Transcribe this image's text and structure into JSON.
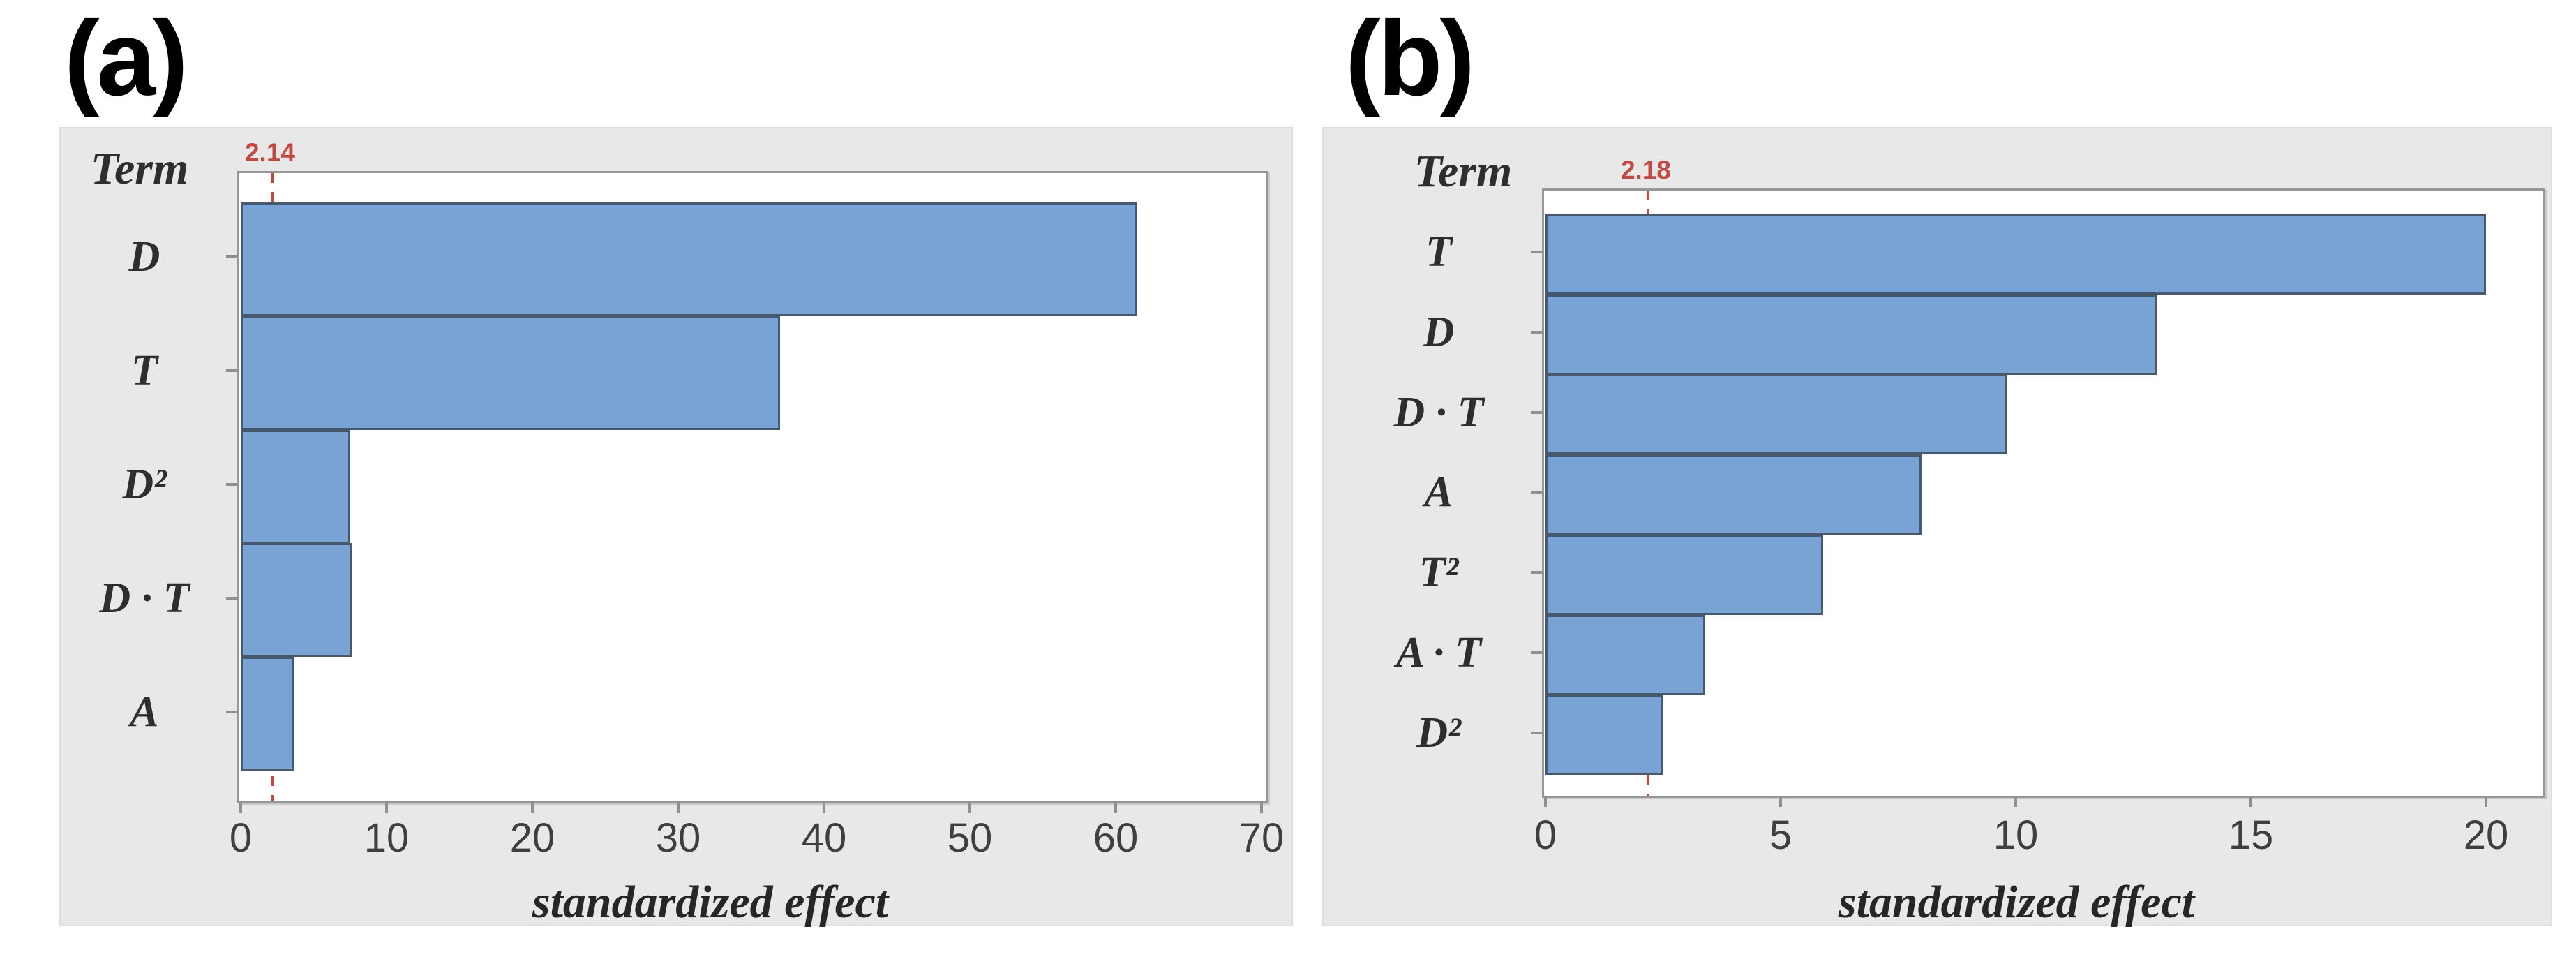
{
  "figure": {
    "panel_a_label": "(a)",
    "panel_b_label": "(b)"
  },
  "chart_data": [
    {
      "id": "a",
      "type": "bar",
      "orientation": "horizontal",
      "term_header": "Term",
      "categories": [
        "D",
        "T",
        "D²",
        "D · T",
        "A"
      ],
      "values": [
        61.5,
        37,
        7.5,
        7.6,
        3.7
      ],
      "reference_line": {
        "value": 2.14,
        "label": "2.14"
      },
      "xlabel": "standardized effect",
      "xlim": [
        0,
        70
      ],
      "xticks": [
        0,
        10,
        20,
        30,
        40,
        50,
        60,
        70
      ],
      "grid": false,
      "legend": "none"
    },
    {
      "id": "b",
      "type": "bar",
      "orientation": "horizontal",
      "term_header": "Term",
      "categories": [
        "T",
        "D",
        "D · T",
        "A",
        "T²",
        "A · T",
        "D²"
      ],
      "values": [
        20,
        13,
        9.8,
        8,
        5.9,
        3.4,
        2.5
      ],
      "reference_line": {
        "value": 2.18,
        "label": "2.18"
      },
      "xlabel": "standardized effect",
      "xlim": [
        0,
        20
      ],
      "xticks": [
        0,
        5,
        10,
        15,
        20
      ],
      "grid": false,
      "legend": "none"
    }
  ],
  "colors": {
    "bar_fill": "#7aa3d5",
    "bar_border": "#46596f",
    "panel_bg": "#e8e8e8",
    "plot_bg": "#ffffff",
    "frame_border": "#979797",
    "reference_red": "#bf4a44",
    "tick_color": "#8f8f8f",
    "label_text": "#2e2e2e",
    "number_text": "#3f3f3f"
  }
}
